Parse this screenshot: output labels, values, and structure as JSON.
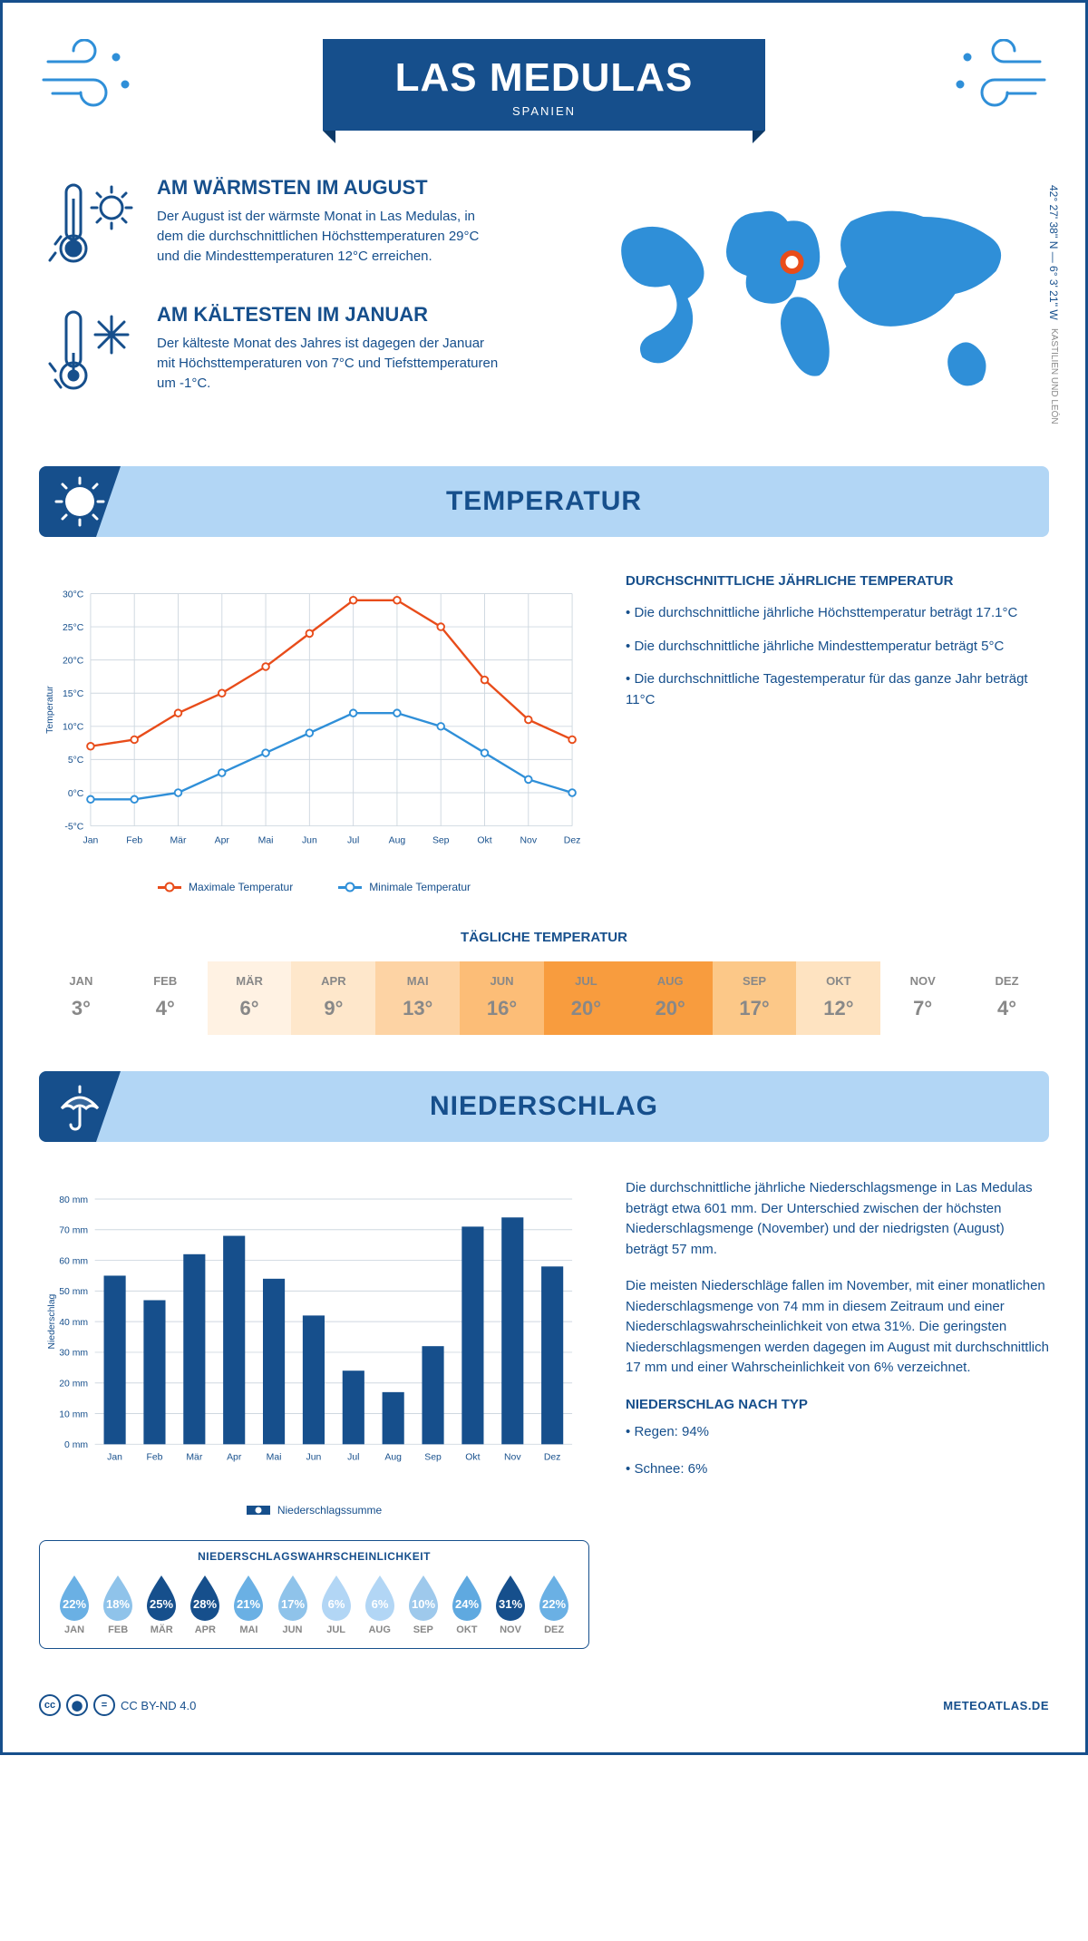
{
  "header": {
    "title": "LAS MEDULAS",
    "subtitle": "SPANIEN"
  },
  "coords": {
    "line": "42° 27' 38'' N — 6° 3' 21'' W",
    "region": "KASTILIEN UND LEÓN"
  },
  "map": {
    "marker_color": "#e84c1a",
    "land_color": "#2f8fd8"
  },
  "facts": {
    "warm": {
      "title": "AM WÄRMSTEN IM AUGUST",
      "text": "Der August ist der wärmste Monat in Las Medulas, in dem die durchschnittlichen Höchsttemperaturen 29°C und die Mindesttemperaturen 12°C erreichen."
    },
    "cold": {
      "title": "AM KÄLTESTEN IM JANUAR",
      "text": "Der kälteste Monat des Jahres ist dagegen der Januar mit Höchsttemperaturen von 7°C und Tiefsttemperaturen um -1°C."
    }
  },
  "sections": {
    "temp": "TEMPERATUR",
    "precip": "NIEDERSCHLAG"
  },
  "months": [
    "Jan",
    "Feb",
    "Mär",
    "Apr",
    "Mai",
    "Jun",
    "Jul",
    "Aug",
    "Sep",
    "Okt",
    "Nov",
    "Dez"
  ],
  "months_upper": [
    "JAN",
    "FEB",
    "MÄR",
    "APR",
    "MAI",
    "JUN",
    "JUL",
    "AUG",
    "SEP",
    "OKT",
    "NOV",
    "DEZ"
  ],
  "temp_chart": {
    "type": "line",
    "ylabel": "Temperatur",
    "ylim": [
      -5,
      30
    ],
    "ytick_step": 5,
    "grid_color": "#cfd8e0",
    "series": {
      "max": {
        "label": "Maximale Temperatur",
        "color": "#e84c1a",
        "values": [
          7,
          8,
          12,
          15,
          19,
          24,
          29,
          29,
          25,
          17,
          11,
          8
        ]
      },
      "min": {
        "label": "Minimale Temperatur",
        "color": "#2f8fd8",
        "values": [
          -1,
          -1,
          0,
          3,
          6,
          9,
          12,
          12,
          10,
          6,
          2,
          0
        ]
      }
    }
  },
  "temp_text": {
    "heading": "DURCHSCHNITTLICHE JÄHRLICHE TEMPERATUR",
    "b1": "• Die durchschnittliche jährliche Höchsttemperatur beträgt 17.1°C",
    "b2": "• Die durchschnittliche jährliche Mindesttemperatur beträgt 5°C",
    "b3": "• Die durchschnittliche Tagestemperatur für das ganze Jahr beträgt 11°C"
  },
  "daily_temp": {
    "title": "TÄGLICHE TEMPERATUR",
    "values": [
      "3°",
      "4°",
      "6°",
      "9°",
      "13°",
      "16°",
      "20°",
      "20°",
      "17°",
      "12°",
      "7°",
      "4°"
    ],
    "cell_colors": [
      "#ffffff",
      "#ffffff",
      "#fff2e3",
      "#fee7cb",
      "#fdd3a4",
      "#fcbd77",
      "#f89c3e",
      "#f89c3e",
      "#fcc888",
      "#fee3c1",
      "#ffffff",
      "#ffffff"
    ]
  },
  "precip_chart": {
    "type": "bar",
    "ylabel": "Niederschlag",
    "legend": "Niederschlagssumme",
    "ylim": [
      0,
      80
    ],
    "ytick_step": 10,
    "y_suffix": " mm",
    "bar_color": "#164f8c",
    "grid_color": "#cfd8e0",
    "values": [
      55,
      47,
      62,
      68,
      54,
      42,
      24,
      17,
      32,
      71,
      74,
      58
    ]
  },
  "precip_text": {
    "p1": "Die durchschnittliche jährliche Niederschlagsmenge in Las Medulas beträgt etwa 601 mm. Der Unterschied zwischen der höchsten Niederschlagsmenge (November) und der niedrigsten (August) beträgt 57 mm.",
    "p2": "Die meisten Niederschläge fallen im November, mit einer monatlichen Niederschlagsmenge von 74 mm in diesem Zeitraum und einer Niederschlagswahrscheinlichkeit von etwa 31%. Die geringsten Niederschlagsmengen werden dagegen im August mit durchschnittlich 17 mm und einer Wahrscheinlichkeit von 6% verzeichnet.",
    "type_heading": "NIEDERSCHLAG NACH TYP",
    "type1": "• Regen: 94%",
    "type2": "• Schnee: 6%"
  },
  "probability": {
    "title": "NIEDERSCHLAGSWAHRSCHEINLICHKEIT",
    "values": [
      "22%",
      "18%",
      "25%",
      "28%",
      "21%",
      "17%",
      "6%",
      "6%",
      "10%",
      "24%",
      "31%",
      "22%"
    ],
    "colors": [
      "#6ab0e4",
      "#8fc3ea",
      "#164f8c",
      "#164f8c",
      "#6ab0e4",
      "#8fc3ea",
      "#b2d6f5",
      "#b2d6f5",
      "#9ec9ec",
      "#5fa9e0",
      "#164f8c",
      "#6ab0e4"
    ]
  },
  "footer": {
    "license": "CC BY-ND 4.0",
    "site": "METEOATLAS.DE"
  }
}
